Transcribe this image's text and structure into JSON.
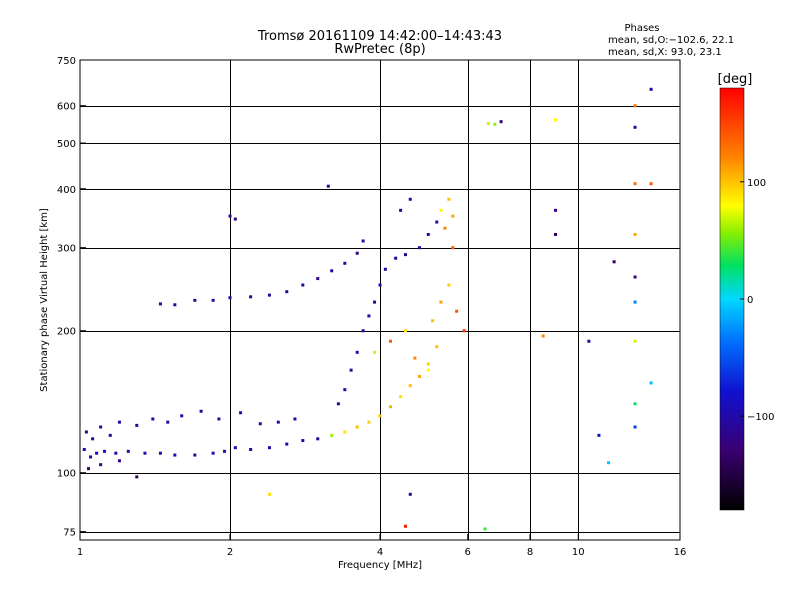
{
  "header": {
    "title_line1": "Tromsø 20161109 14:42:00–14:43:43",
    "title_line2": "RwPretec (8p)",
    "phases_label": "Phases",
    "stats_o": "mean, sd,O:−102.6, 22.1",
    "stats_x": "mean, sd,X:  93.0, 23.1"
  },
  "colorbar": {
    "unit_label": "[deg]",
    "range": [
      -180,
      180
    ],
    "ticks": [
      {
        "label": "100",
        "value": 100
      },
      {
        "label": "0",
        "value": 0
      },
      {
        "label": "−100",
        "value": -100
      }
    ]
  },
  "chart_data": {
    "type": "scatter",
    "xlabel": "Frequency [MHz]",
    "ylabel": "Stationary phase Virtual Height [km]",
    "xscale": "log",
    "yscale": "log",
    "xlim": [
      1,
      16
    ],
    "ylim": [
      72,
      750
    ],
    "x_ticks": [
      {
        "label": "1",
        "value": 1
      },
      {
        "label": "2",
        "value": 2
      },
      {
        "label": "4",
        "value": 4
      },
      {
        "label": "6",
        "value": 6
      },
      {
        "label": "8",
        "value": 8
      },
      {
        "label": "10",
        "value": 10
      },
      {
        "label": "16",
        "value": 16
      }
    ],
    "x_grid": [
      2,
      4,
      6,
      8,
      10
    ],
    "y_ticks": [
      {
        "label": "750",
        "value": 750
      },
      {
        "label": "600",
        "value": 600
      },
      {
        "label": "500",
        "value": 500
      },
      {
        "label": "400",
        "value": 400
      },
      {
        "label": "300",
        "value": 300
      },
      {
        "label": "200",
        "value": 200
      },
      {
        "label": "100",
        "value": 100
      },
      {
        "label": "75",
        "value": 75
      }
    ],
    "y_grid": [
      600,
      500,
      400,
      300,
      200,
      100,
      75
    ],
    "grid": true,
    "points": [
      [
        1.02,
        112,
        -95
      ],
      [
        1.05,
        108,
        -100
      ],
      [
        1.08,
        110,
        -92
      ],
      [
        1.12,
        111,
        -98
      ],
      [
        1.18,
        110,
        -95
      ],
      [
        1.25,
        111,
        -100
      ],
      [
        1.35,
        110,
        -96
      ],
      [
        1.45,
        110,
        -98
      ],
      [
        1.55,
        109,
        -95
      ],
      [
        1.7,
        109,
        -97
      ],
      [
        1.85,
        110,
        -94
      ],
      [
        1.95,
        111,
        -100
      ],
      [
        2.05,
        113,
        -100
      ],
      [
        2.2,
        112,
        -105
      ],
      [
        2.4,
        113,
        -102
      ],
      [
        2.6,
        115,
        -100
      ],
      [
        2.8,
        117,
        -105
      ],
      [
        3.0,
        118,
        -110
      ],
      [
        3.2,
        120,
        60
      ],
      [
        3.4,
        122,
        90
      ],
      [
        3.6,
        125,
        100
      ],
      [
        3.8,
        128,
        95
      ],
      [
        4.0,
        132,
        100
      ],
      [
        4.2,
        138,
        105
      ],
      [
        4.4,
        145,
        90
      ],
      [
        4.6,
        153,
        100
      ],
      [
        4.8,
        160,
        110
      ],
      [
        5.0,
        170,
        95
      ],
      [
        5.2,
        185,
        100
      ],
      [
        1.03,
        122,
        -110
      ],
      [
        1.06,
        118,
        -105
      ],
      [
        1.1,
        125,
        -100
      ],
      [
        1.15,
        120,
        -110
      ],
      [
        1.2,
        128,
        -105
      ],
      [
        1.3,
        126,
        -110
      ],
      [
        1.4,
        130,
        -100
      ],
      [
        1.5,
        128,
        -105
      ],
      [
        1.6,
        132,
        -100
      ],
      [
        1.75,
        135,
        -110
      ],
      [
        1.9,
        130,
        -100
      ],
      [
        2.1,
        134,
        -95
      ],
      [
        2.3,
        127,
        -100
      ],
      [
        2.5,
        128,
        -95
      ],
      [
        2.7,
        130,
        -100
      ],
      [
        1.04,
        102,
        -130
      ],
      [
        1.1,
        104,
        -125
      ],
      [
        1.2,
        106,
        -120
      ],
      [
        1.3,
        98,
        -140
      ],
      [
        1.45,
        228,
        -110
      ],
      [
        1.55,
        227,
        -105
      ],
      [
        1.7,
        232,
        -110
      ],
      [
        1.85,
        232,
        -105
      ],
      [
        2.0,
        235,
        -110
      ],
      [
        2.2,
        236,
        -115
      ],
      [
        2.4,
        238,
        -110
      ],
      [
        2.6,
        242,
        -115
      ],
      [
        2.8,
        250,
        -110
      ],
      [
        3.0,
        258,
        -115
      ],
      [
        3.2,
        268,
        -105
      ],
      [
        3.4,
        278,
        -110
      ],
      [
        3.6,
        292,
        -120
      ],
      [
        3.7,
        310,
        -100
      ],
      [
        3.3,
        140,
        -110
      ],
      [
        3.4,
        150,
        -105
      ],
      [
        3.5,
        165,
        -110
      ],
      [
        3.6,
        180,
        -100
      ],
      [
        3.7,
        200,
        -110
      ],
      [
        3.8,
        215,
        -100
      ],
      [
        3.9,
        230,
        -105
      ],
      [
        4.0,
        250,
        -100
      ],
      [
        4.1,
        270,
        -110
      ],
      [
        4.3,
        285,
        -115
      ],
      [
        4.5,
        290,
        -110
      ],
      [
        4.8,
        300,
        -105
      ],
      [
        5.0,
        320,
        -100
      ],
      [
        5.2,
        340,
        -95
      ],
      [
        4.4,
        360,
        -115
      ],
      [
        4.6,
        380,
        -100
      ],
      [
        5.3,
        360,
        80
      ],
      [
        5.5,
        380,
        100
      ],
      [
        5.6,
        350,
        110
      ],
      [
        5.4,
        330,
        120
      ],
      [
        5.6,
        300,
        140
      ],
      [
        3.9,
        180,
        70
      ],
      [
        4.2,
        190,
        140
      ],
      [
        4.5,
        200,
        90
      ],
      [
        4.7,
        175,
        120
      ],
      [
        5.0,
        165,
        80
      ],
      [
        5.1,
        210,
        100
      ],
      [
        5.3,
        230,
        110
      ],
      [
        5.5,
        250,
        95
      ],
      [
        5.7,
        220,
        140
      ],
      [
        5.9,
        200,
        160
      ],
      [
        6.6,
        550,
        70
      ],
      [
        6.8,
        548,
        60
      ],
      [
        7.0,
        555,
        -120
      ],
      [
        9.0,
        560,
        80
      ],
      [
        13.0,
        600,
        130
      ],
      [
        13.0,
        540,
        -110
      ],
      [
        13.0,
        410,
        130
      ],
      [
        13.0,
        320,
        110
      ],
      [
        13.0,
        260,
        -130
      ],
      [
        14.0,
        410,
        140
      ],
      [
        14.0,
        650,
        -100
      ],
      [
        9.0,
        360,
        -120
      ],
      [
        9.0,
        320,
        -140
      ],
      [
        11.8,
        280,
        -135
      ],
      [
        13.0,
        230,
        -30
      ],
      [
        13.0,
        190,
        70
      ],
      [
        13.0,
        140,
        30
      ],
      [
        13.0,
        125,
        -60
      ],
      [
        14.0,
        155,
        -10
      ],
      [
        10.5,
        190,
        -110
      ],
      [
        11.0,
        120,
        -80
      ],
      [
        11.5,
        105,
        -5
      ],
      [
        8.5,
        195,
        120
      ],
      [
        2.0,
        350,
        -110
      ],
      [
        2.05,
        345,
        -115
      ],
      [
        3.15,
        405,
        -110
      ],
      [
        2.4,
        90,
        90
      ],
      [
        4.5,
        77,
        170
      ],
      [
        4.6,
        90,
        -110
      ],
      [
        6.5,
        76,
        40
      ]
    ]
  }
}
